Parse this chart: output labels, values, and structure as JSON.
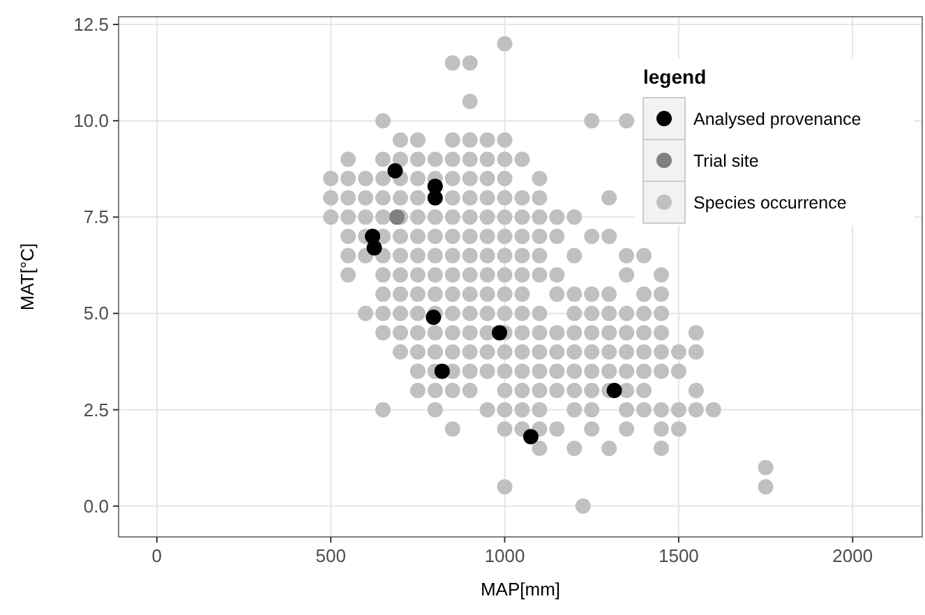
{
  "chart_data": {
    "type": "scatter",
    "xlabel": "MAP[mm]",
    "ylabel": "MAT[°C]",
    "legend_title": "legend",
    "legend": "top right",
    "grid": true,
    "marker": "circle",
    "xlim": [
      -110,
      2200
    ],
    "xticks": [
      0,
      500,
      1000,
      1500,
      2000
    ],
    "ylim": [
      -0.8,
      12.7
    ],
    "yticks": [
      {
        "value": 0,
        "label": "0.0"
      },
      {
        "value": 2.5,
        "label": "2.5"
      },
      {
        "value": 5,
        "label": "5.0"
      },
      {
        "value": 7.5,
        "label": "7.5"
      },
      {
        "value": 10,
        "label": "10.0"
      },
      {
        "value": 12.5,
        "label": "12.5"
      }
    ],
    "series": [
      {
        "name": "Analysed provenance",
        "color": "#000000",
        "x": [
          685,
          620,
          625,
          800,
          800,
          795,
          820,
          985,
          1075,
          1315
        ],
        "values": [
          8.7,
          7.0,
          6.7,
          8.3,
          8.0,
          4.9,
          3.5,
          4.5,
          1.8,
          3.0
        ]
      },
      {
        "name": "Trial site",
        "color": "#808080",
        "x": [
          690
        ],
        "values": [
          7.5
        ]
      },
      {
        "name": "Species occurrence",
        "color": "#c0c0c0",
        "x": [
          1000,
          850,
          900,
          900,
          650,
          1250,
          1350,
          700,
          750,
          850,
          900,
          950,
          1000,
          550,
          650,
          700,
          750,
          800,
          850,
          900,
          950,
          1000,
          1050,
          500,
          550,
          600,
          650,
          700,
          750,
          800,
          850,
          900,
          950,
          1000,
          1100,
          500,
          550,
          600,
          650,
          700,
          750,
          850,
          900,
          950,
          1000,
          1050,
          1100,
          1300,
          500,
          550,
          600,
          650,
          700,
          750,
          800,
          850,
          900,
          950,
          1000,
          1050,
          1100,
          1150,
          1200,
          550,
          600,
          650,
          700,
          750,
          800,
          850,
          900,
          950,
          1000,
          1050,
          1100,
          1150,
          1250,
          1300,
          550,
          600,
          650,
          700,
          750,
          800,
          850,
          900,
          950,
          1000,
          1050,
          1100,
          1200,
          1350,
          1400,
          550,
          650,
          700,
          750,
          800,
          850,
          900,
          950,
          1000,
          1050,
          1100,
          1150,
          1350,
          1450,
          650,
          700,
          750,
          800,
          850,
          900,
          950,
          1000,
          1050,
          1150,
          1200,
          1250,
          1300,
          1400,
          1450,
          600,
          650,
          700,
          750,
          800,
          850,
          900,
          950,
          1000,
          1050,
          1100,
          1200,
          1250,
          1300,
          1350,
          1400,
          1450,
          650,
          700,
          750,
          800,
          850,
          900,
          950,
          1000,
          1050,
          1100,
          1150,
          1200,
          1250,
          1300,
          1350,
          1400,
          1450,
          1550,
          700,
          750,
          800,
          850,
          900,
          950,
          1000,
          1050,
          1100,
          1150,
          1200,
          1250,
          1300,
          1350,
          1400,
          1450,
          1500,
          1550,
          750,
          800,
          850,
          900,
          950,
          1000,
          1050,
          1100,
          1150,
          1200,
          1250,
          1300,
          1350,
          1400,
          1450,
          1500,
          750,
          800,
          850,
          900,
          1000,
          1050,
          1100,
          1150,
          1200,
          1250,
          1300,
          1350,
          1400,
          1550,
          650,
          800,
          950,
          1000,
          1050,
          1100,
          1200,
          1250,
          1350,
          1400,
          1450,
          1500,
          1550,
          1600,
          850,
          1000,
          1050,
          1100,
          1150,
          1250,
          1350,
          1450,
          1500,
          1100,
          1200,
          1300,
          1450,
          1750,
          1000,
          1750,
          1225
        ],
        "values": [
          12,
          11.5,
          11.5,
          10.5,
          10,
          10,
          10,
          9.5,
          9.5,
          9.5,
          9.5,
          9.5,
          9.5,
          9,
          9,
          9,
          9,
          9,
          9,
          9,
          9,
          9,
          9,
          8.5,
          8.5,
          8.5,
          8.5,
          8.5,
          8.5,
          8.5,
          8.5,
          8.5,
          8.5,
          8.5,
          8.5,
          8,
          8,
          8,
          8,
          8,
          8,
          8,
          8,
          8,
          8,
          8,
          8,
          8,
          7.5,
          7.5,
          7.5,
          7.5,
          7.5,
          7.5,
          7.5,
          7.5,
          7.5,
          7.5,
          7.5,
          7.5,
          7.5,
          7.5,
          7.5,
          7,
          7,
          7,
          7,
          7,
          7,
          7,
          7,
          7,
          7,
          7,
          7,
          7,
          7,
          7,
          6.5,
          6.5,
          6.5,
          6.5,
          6.5,
          6.5,
          6.5,
          6.5,
          6.5,
          6.5,
          6.5,
          6.5,
          6.5,
          6.5,
          6.5,
          6,
          6,
          6,
          6,
          6,
          6,
          6,
          6,
          6,
          6,
          6,
          6,
          6,
          6,
          5.5,
          5.5,
          5.5,
          5.5,
          5.5,
          5.5,
          5.5,
          5.5,
          5.5,
          5.5,
          5.5,
          5.5,
          5.5,
          5.5,
          5.5,
          5,
          5,
          5,
          5,
          5,
          5,
          5,
          5,
          5,
          5,
          5,
          5,
          5,
          5,
          5,
          5,
          5,
          4.5,
          4.5,
          4.5,
          4.5,
          4.5,
          4.5,
          4.5,
          4.5,
          4.5,
          4.5,
          4.5,
          4.5,
          4.5,
          4.5,
          4.5,
          4.5,
          4.5,
          4.5,
          4,
          4,
          4,
          4,
          4,
          4,
          4,
          4,
          4,
          4,
          4,
          4,
          4,
          4,
          4,
          4,
          4,
          4,
          3.5,
          3.5,
          3.5,
          3.5,
          3.5,
          3.5,
          3.5,
          3.5,
          3.5,
          3.5,
          3.5,
          3.5,
          3.5,
          3.5,
          3.5,
          3.5,
          3,
          3,
          3,
          3,
          3,
          3,
          3,
          3,
          3,
          3,
          3,
          3,
          3,
          3,
          2.5,
          2.5,
          2.5,
          2.5,
          2.5,
          2.5,
          2.5,
          2.5,
          2.5,
          2.5,
          2.5,
          2.5,
          2.5,
          2.5,
          2,
          2,
          2,
          2,
          2,
          2,
          2,
          2,
          2,
          1.5,
          1.5,
          1.5,
          1.5,
          1,
          0.5,
          0.5,
          0
        ]
      }
    ]
  }
}
